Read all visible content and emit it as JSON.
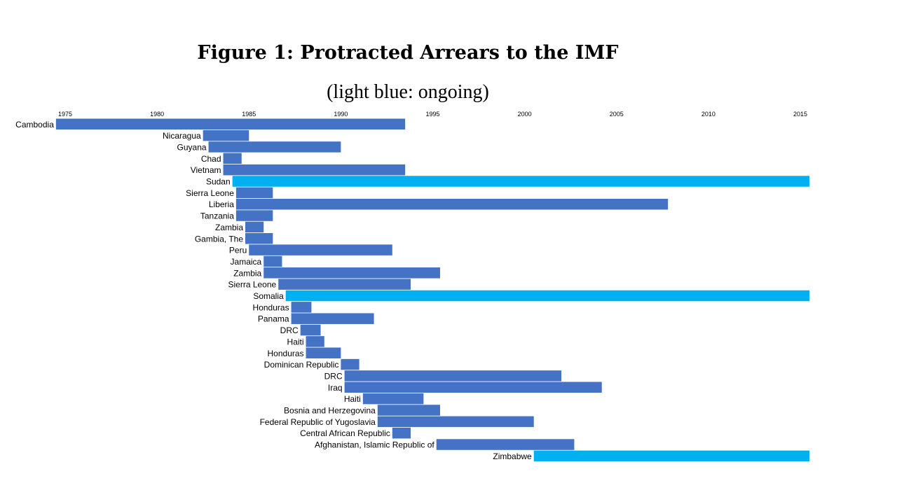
{
  "title": "Figure 1: Protracted Arrears to the IMF",
  "subtitle": "(light blue: ongoing)",
  "colors": {
    "resolved": "#4472C4",
    "ongoing": "#00B0F0"
  },
  "chart_data": {
    "type": "bar",
    "orientation": "horizontal-timeline",
    "xlim": [
      1975,
      2015
    ],
    "xticks": [
      1975,
      1980,
      1985,
      1990,
      1995,
      2000,
      2005,
      2010,
      2015
    ],
    "grid": false,
    "series": [
      {
        "name": "light blue: ongoing",
        "color": "#00B0F0"
      }
    ],
    "bars": [
      {
        "label": "Cambodia",
        "start": 1974.5,
        "end": 1993.5,
        "ongoing": false
      },
      {
        "label": "Nicaragua",
        "start": 1982.5,
        "end": 1985.0,
        "ongoing": false
      },
      {
        "label": "Guyana",
        "start": 1982.8,
        "end": 1990.0,
        "ongoing": false
      },
      {
        "label": "Chad",
        "start": 1983.6,
        "end": 1984.6,
        "ongoing": false
      },
      {
        "label": "Vietnam",
        "start": 1983.6,
        "end": 1993.5,
        "ongoing": false
      },
      {
        "label": "Sudan",
        "start": 1984.1,
        "end": 2015.5,
        "ongoing": true
      },
      {
        "label": "Sierra Leone",
        "start": 1984.3,
        "end": 1986.3,
        "ongoing": false
      },
      {
        "label": "Liberia",
        "start": 1984.3,
        "end": 2007.8,
        "ongoing": false
      },
      {
        "label": "Tanzania",
        "start": 1984.3,
        "end": 1986.3,
        "ongoing": false
      },
      {
        "label": "Zambia",
        "start": 1984.8,
        "end": 1985.8,
        "ongoing": false
      },
      {
        "label": "Gambia, The",
        "start": 1984.8,
        "end": 1986.3,
        "ongoing": false
      },
      {
        "label": "Peru",
        "start": 1985.0,
        "end": 1992.8,
        "ongoing": false
      },
      {
        "label": "Jamaica",
        "start": 1985.8,
        "end": 1986.8,
        "ongoing": false
      },
      {
        "label": "Zambia",
        "start": 1985.8,
        "end": 1995.4,
        "ongoing": false
      },
      {
        "label": "Sierra Leone",
        "start": 1986.6,
        "end": 1993.8,
        "ongoing": false
      },
      {
        "label": "Somalia",
        "start": 1987.0,
        "end": 2015.5,
        "ongoing": true
      },
      {
        "label": "Honduras",
        "start": 1987.3,
        "end": 1988.4,
        "ongoing": false
      },
      {
        "label": "Panama",
        "start": 1987.3,
        "end": 1991.8,
        "ongoing": false
      },
      {
        "label": "DRC",
        "start": 1987.8,
        "end": 1988.9,
        "ongoing": false
      },
      {
        "label": "Haiti",
        "start": 1988.1,
        "end": 1989.1,
        "ongoing": false
      },
      {
        "label": "Honduras",
        "start": 1988.1,
        "end": 1990.0,
        "ongoing": false
      },
      {
        "label": "Dominican Republic",
        "start": 1990.0,
        "end": 1991.0,
        "ongoing": false
      },
      {
        "label": "DRC",
        "start": 1990.2,
        "end": 2002.0,
        "ongoing": false
      },
      {
        "label": "Iraq",
        "start": 1990.2,
        "end": 2004.2,
        "ongoing": false
      },
      {
        "label": "Haiti",
        "start": 1991.2,
        "end": 1994.5,
        "ongoing": false
      },
      {
        "label": "Bosnia and Herzegovina",
        "start": 1992.0,
        "end": 1995.4,
        "ongoing": false
      },
      {
        "label": "Federal Republic of Yugoslavia",
        "start": 1992.0,
        "end": 2000.5,
        "ongoing": false
      },
      {
        "label": "Central African Republic",
        "start": 1992.8,
        "end": 1993.8,
        "ongoing": false
      },
      {
        "label": "Afghanistan, Islamic Republic of",
        "start": 1995.2,
        "end": 2002.7,
        "ongoing": false
      },
      {
        "label": "Zimbabwe",
        "start": 2000.5,
        "end": 2015.5,
        "ongoing": true
      }
    ]
  }
}
